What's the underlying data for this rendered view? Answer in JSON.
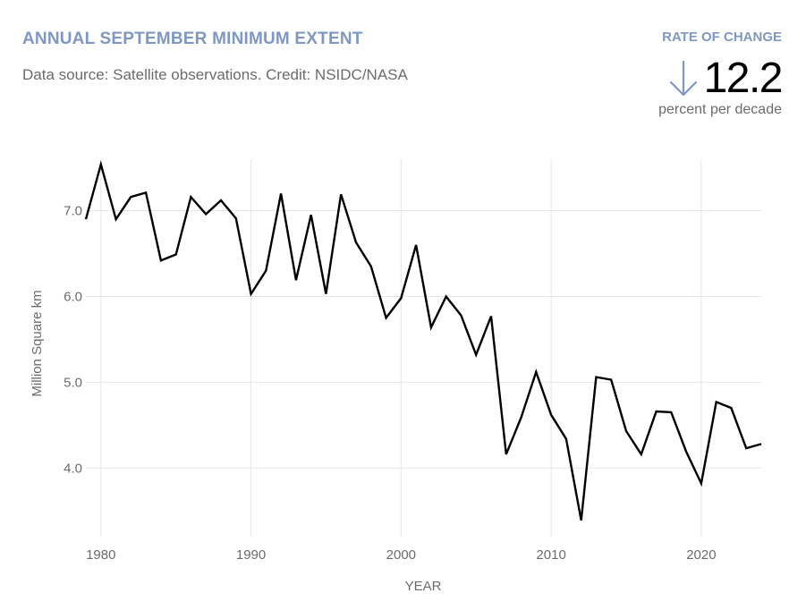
{
  "header": {
    "title": "ANNUAL SEPTEMBER MINIMUM EXTENT",
    "subtitle": "Data source: Satellite observations. Credit: NSIDC/NASA"
  },
  "rate": {
    "label": "RATE OF CHANGE",
    "value": "12.2",
    "unit": "percent per decade",
    "direction": "down",
    "arrow_icon": "arrow-down-icon"
  },
  "colors": {
    "accent": "#7e97c4",
    "line": "#000000",
    "grid": "#e6e6e6",
    "text": "#6b6b6b"
  },
  "chart_data": {
    "type": "line",
    "xlabel": "YEAR",
    "ylabel": "Million Square km",
    "xlim": [
      1979,
      2024
    ],
    "ylim": [
      3.2,
      7.6
    ],
    "grid": true,
    "x_ticks": [
      1980,
      1990,
      2000,
      2010,
      2020
    ],
    "x_tick_labels": [
      "1980",
      "1990",
      "2000",
      "2010",
      "2020"
    ],
    "y_ticks": [
      4.0,
      5.0,
      6.0,
      7.0
    ],
    "y_tick_labels": [
      "4.0",
      "5.0",
      "6.0",
      "7.0"
    ],
    "series": [
      {
        "x": [
          1979,
          1980,
          1981,
          1982,
          1983,
          1984,
          1985,
          1986,
          1987,
          1988,
          1989,
          1990,
          1991,
          1992,
          1993,
          1994,
          1995,
          1996,
          1997,
          1998,
          1999,
          2000,
          2001,
          2002,
          2003,
          2004,
          2005,
          2006,
          2007,
          2008,
          2009,
          2010,
          2011,
          2012,
          2013,
          2014,
          2015,
          2016,
          2017,
          2018,
          2019,
          2020,
          2021,
          2022,
          2023,
          2024
        ],
        "values": [
          6.9,
          7.54,
          6.9,
          7.16,
          7.21,
          6.42,
          6.49,
          7.16,
          6.96,
          7.12,
          6.91,
          6.03,
          6.3,
          7.2,
          6.19,
          6.95,
          6.03,
          7.19,
          6.63,
          6.35,
          5.75,
          5.98,
          6.6,
          5.64,
          6.0,
          5.78,
          5.32,
          5.77,
          4.16,
          4.59,
          5.12,
          4.62,
          4.34,
          3.39,
          5.06,
          5.03,
          4.43,
          4.16,
          4.66,
          4.65,
          4.19,
          3.82,
          4.77,
          4.7,
          4.23,
          4.28
        ]
      }
    ]
  }
}
